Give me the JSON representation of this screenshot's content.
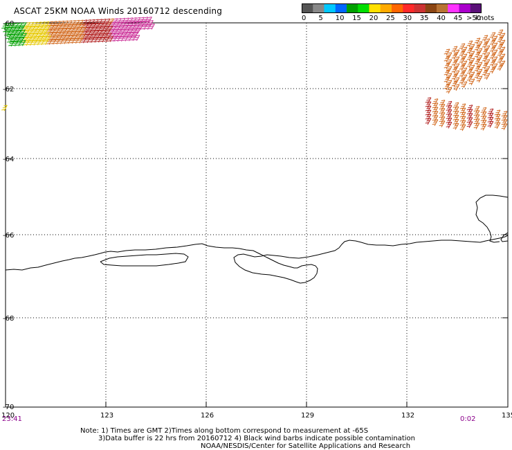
{
  "title": "ASCAT 25KM NOAA Winds 20160712 descending",
  "legend": {
    "colors": [
      "#555555",
      "#888888",
      "#00c8ff",
      "#0066ff",
      "#00a000",
      "#00dd00",
      "#ffe000",
      "#ffaa00",
      "#ff6600",
      "#ff2a2a",
      "#cc3333",
      "#8b4513",
      "#b87333",
      "#ff33ff",
      "#aa00cc",
      "#5a1078"
    ],
    "labels": [
      "0",
      "5",
      "10",
      "15",
      "20",
      "25",
      "30",
      "35",
      "40",
      "45",
      ">50"
    ],
    "units": "knots"
  },
  "axes": {
    "lat_labels": [
      "-60",
      "-62",
      "-64",
      "-66",
      "-68",
      "-70"
    ],
    "lon_labels": [
      "120",
      "123",
      "126",
      "129",
      "132",
      "135"
    ]
  },
  "times": {
    "left": "23:41",
    "right": "0:02"
  },
  "notes": {
    "line1": "Note: 1) Times are GMT 2)Times along bottom correspond to measurement at -65S",
    "line2": "3)Data buffer is 22 hrs from 20160712 4) Black wind barbs indicate possible contamination",
    "line3": "NOAA/NESDIS/Center for Satellite Applications and Research"
  },
  "wind_colors": {
    "green": "#00a000",
    "yellow": "#e6c800",
    "orange": "#d2691e",
    "red": "#b22222",
    "magenta": "#cc3399"
  }
}
